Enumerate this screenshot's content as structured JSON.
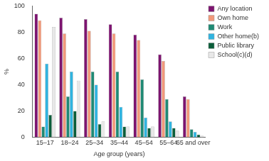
{
  "chart_data": {
    "type": "bar",
    "ylabel": "%",
    "xlabel": "Age group (years)",
    "categories": [
      "15–17",
      "18–24",
      "25–34",
      "35–44",
      "45–54",
      "55–64",
      "65 and over"
    ],
    "series": [
      {
        "name": "Any location",
        "color": "#7d1470",
        "values": [
          94,
          91,
          90,
          86,
          78,
          63,
          31
        ]
      },
      {
        "name": "Own home",
        "color": "#f2997a",
        "values": [
          89,
          79,
          81,
          79,
          74,
          58,
          29
        ]
      },
      {
        "name": "Work",
        "color": "#1f8a74",
        "values": [
          8,
          31,
          50,
          50,
          44,
          29,
          6
        ]
      },
      {
        "name": "Other home(b)",
        "color": "#30b4e0",
        "values": [
          56,
          50,
          40,
          23,
          15,
          12,
          4
        ]
      },
      {
        "name": "Public library",
        "color": "#0b5e3a",
        "values": [
          17,
          20,
          10,
          8,
          7,
          7,
          2
        ]
      },
      {
        "name": "School(c)(d)",
        "color": "#e8e8e8",
        "values": [
          84,
          43,
          12,
          8,
          8,
          5,
          1
        ]
      }
    ],
    "ylim": [
      0,
      100
    ],
    "yticks": [
      0,
      20,
      40,
      60,
      80,
      100
    ],
    "grid": false,
    "legend": "right"
  }
}
